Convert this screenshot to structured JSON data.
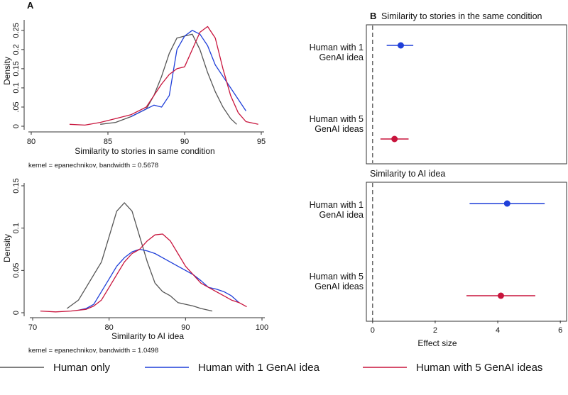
{
  "panel_a_label": "A",
  "panel_b_label": "B",
  "legend": [
    {
      "label": "Human only",
      "color": "#555555"
    },
    {
      "label": "Human with 1 GenAI idea",
      "color": "#1f3fd9"
    },
    {
      "label": "Human with 5 GenAI ideas",
      "color": "#c8143c"
    }
  ],
  "colors": {
    "human_only": "#555555",
    "one_idea": "#1f3fd9",
    "five_ideas": "#c8143c"
  },
  "chart_data": [
    {
      "type": "line",
      "panel": "A-top",
      "xlabel": "Similarity to stories in same condition",
      "ylabel": "Density",
      "note": "kernel = epanechnikov, bandwidth = 0.5678",
      "xlim": [
        80,
        95
      ],
      "ylim": [
        0,
        0.27
      ],
      "xticks": [
        80,
        85,
        90,
        95
      ],
      "yticks": [
        0,
        0.05,
        0.1,
        0.15,
        0.2,
        0.25
      ],
      "ytick_labels": [
        "0",
        ".05",
        "0.1",
        "0.15",
        "0.2",
        "0.25"
      ],
      "series": [
        {
          "name": "Human only",
          "color": "#555555",
          "points": [
            [
              84.5,
              0.005
            ],
            [
              85.5,
              0.01
            ],
            [
              86.5,
              0.025
            ],
            [
              87.5,
              0.045
            ],
            [
              88,
              0.08
            ],
            [
              88.5,
              0.13
            ],
            [
              89,
              0.19
            ],
            [
              89.5,
              0.23
            ],
            [
              90,
              0.235
            ],
            [
              90.5,
              0.24
            ],
            [
              91,
              0.2
            ],
            [
              91.5,
              0.14
            ],
            [
              92,
              0.09
            ],
            [
              92.5,
              0.05
            ],
            [
              93,
              0.02
            ],
            [
              93.4,
              0.005
            ]
          ]
        },
        {
          "name": "Human with 1 GenAI idea",
          "color": "#1f3fd9",
          "points": [
            [
              86.5,
              0.025
            ],
            [
              87,
              0.035
            ],
            [
              87.5,
              0.045
            ],
            [
              88,
              0.055
            ],
            [
              88.5,
              0.05
            ],
            [
              89,
              0.08
            ],
            [
              89.5,
              0.2
            ],
            [
              90,
              0.235
            ],
            [
              90.5,
              0.25
            ],
            [
              91,
              0.24
            ],
            [
              91.5,
              0.21
            ],
            [
              92,
              0.16
            ],
            [
              92.5,
              0.13
            ],
            [
              93,
              0.1
            ],
            [
              93.5,
              0.07
            ],
            [
              94,
              0.04
            ]
          ]
        },
        {
          "name": "Human with 5 GenAI ideas",
          "color": "#c8143c",
          "points": [
            [
              82.5,
              0.005
            ],
            [
              83.5,
              0.003
            ],
            [
              84.5,
              0.01
            ],
            [
              85.5,
              0.02
            ],
            [
              86.5,
              0.03
            ],
            [
              87.5,
              0.05
            ],
            [
              88,
              0.08
            ],
            [
              88.5,
              0.11
            ],
            [
              89,
              0.135
            ],
            [
              89.5,
              0.15
            ],
            [
              90,
              0.155
            ],
            [
              90.5,
              0.2
            ],
            [
              91,
              0.245
            ],
            [
              91.5,
              0.26
            ],
            [
              92,
              0.23
            ],
            [
              92.5,
              0.15
            ],
            [
              93,
              0.08
            ],
            [
              93.5,
              0.035
            ],
            [
              94,
              0.012
            ],
            [
              94.8,
              0.005
            ]
          ]
        }
      ]
    },
    {
      "type": "line",
      "panel": "A-bottom",
      "xlabel": "Similarity to AI idea",
      "ylabel": "Density",
      "note": "kernel = epanechnikov, bandwidth = 1.0498",
      "xlim": [
        70,
        100
      ],
      "ylim": [
        0,
        0.15
      ],
      "xticks": [
        70,
        80,
        90,
        100
      ],
      "yticks": [
        0,
        0.05,
        0.1,
        0.15
      ],
      "ytick_labels": [
        "0",
        "0.05",
        "0.1",
        "0.15"
      ],
      "series": [
        {
          "name": "Human only",
          "color": "#555555",
          "points": [
            [
              74.5,
              0.005
            ],
            [
              76,
              0.015
            ],
            [
              77,
              0.03
            ],
            [
              78,
              0.045
            ],
            [
              79,
              0.06
            ],
            [
              80,
              0.09
            ],
            [
              81,
              0.12
            ],
            [
              82,
              0.13
            ],
            [
              83,
              0.12
            ],
            [
              84,
              0.09
            ],
            [
              85,
              0.06
            ],
            [
              86,
              0.035
            ],
            [
              87,
              0.025
            ],
            [
              88,
              0.02
            ],
            [
              89,
              0.012
            ],
            [
              90,
              0.01
            ],
            [
              91,
              0.008
            ],
            [
              92,
              0.005
            ],
            [
              93.5,
              0.002
            ]
          ]
        },
        {
          "name": "Human with 1 GenAI idea",
          "color": "#1f3fd9",
          "points": [
            [
              76,
              0.003
            ],
            [
              77,
              0.005
            ],
            [
              78,
              0.01
            ],
            [
              79,
              0.025
            ],
            [
              80,
              0.04
            ],
            [
              81,
              0.055
            ],
            [
              82,
              0.065
            ],
            [
              83,
              0.072
            ],
            [
              84,
              0.075
            ],
            [
              85,
              0.073
            ],
            [
              86,
              0.07
            ],
            [
              87,
              0.065
            ],
            [
              88,
              0.06
            ],
            [
              89,
              0.055
            ],
            [
              90,
              0.05
            ],
            [
              91,
              0.045
            ],
            [
              92,
              0.038
            ],
            [
              93,
              0.03
            ],
            [
              94,
              0.028
            ],
            [
              95,
              0.025
            ],
            [
              96,
              0.02
            ],
            [
              97,
              0.012
            ]
          ]
        },
        {
          "name": "Human with 5 GenAI ideas",
          "color": "#c8143c",
          "points": [
            [
              71,
              0.002
            ],
            [
              73,
              0.001
            ],
            [
              75,
              0.002
            ],
            [
              77,
              0.004
            ],
            [
              78,
              0.008
            ],
            [
              79,
              0.015
            ],
            [
              80,
              0.03
            ],
            [
              81,
              0.045
            ],
            [
              82,
              0.06
            ],
            [
              83,
              0.07
            ],
            [
              84,
              0.075
            ],
            [
              85,
              0.085
            ],
            [
              86,
              0.092
            ],
            [
              87,
              0.093
            ],
            [
              88,
              0.085
            ],
            [
              89,
              0.07
            ],
            [
              90,
              0.055
            ],
            [
              91,
              0.045
            ],
            [
              92,
              0.035
            ],
            [
              93,
              0.03
            ],
            [
              94,
              0.025
            ],
            [
              95,
              0.02
            ],
            [
              96,
              0.015
            ],
            [
              97,
              0.012
            ],
            [
              98,
              0.007
            ]
          ]
        }
      ]
    },
    {
      "type": "scatter",
      "panel": "B-top",
      "title": "Similarity to stories in the same condition",
      "xlim": [
        -0.2,
        6.2
      ],
      "reference_line": 0,
      "categories": [
        "Human with 1\nGenAI idea",
        "Human with 5\nGenAI ideas"
      ],
      "series": [
        {
          "name": "Human with 1 GenAI idea",
          "color": "#1f3fd9",
          "estimate": 0.9,
          "ci": [
            0.45,
            1.3
          ]
        },
        {
          "name": "Human with 5 GenAI ideas",
          "color": "#c8143c",
          "estimate": 0.7,
          "ci": [
            0.25,
            1.15
          ]
        }
      ]
    },
    {
      "type": "scatter",
      "panel": "B-bottom",
      "title": "Similarity to AI idea",
      "xlabel": "Effect size",
      "xlim": [
        -0.2,
        6.2
      ],
      "xticks": [
        0,
        2,
        4,
        6
      ],
      "reference_line": 0,
      "categories": [
        "Human with 1\nGenAI idea",
        "Human with 5\nGenAI ideas"
      ],
      "series": [
        {
          "name": "Human with 1 GenAI idea",
          "color": "#1f3fd9",
          "estimate": 4.3,
          "ci": [
            3.1,
            5.5
          ]
        },
        {
          "name": "Human with 5 GenAI ideas",
          "color": "#c8143c",
          "estimate": 4.1,
          "ci": [
            3.0,
            5.2
          ]
        }
      ]
    }
  ]
}
